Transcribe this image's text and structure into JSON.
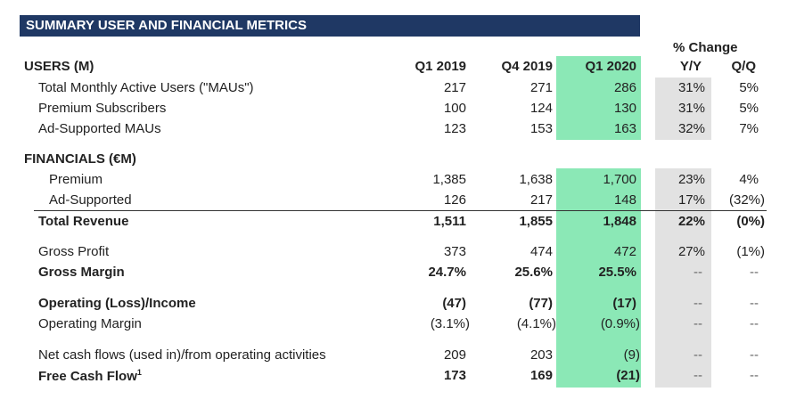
{
  "title": "SUMMARY USER AND FINANCIAL METRICS",
  "pct_change_label": "% Change",
  "columns": [
    "Q1 2019",
    "Q4 2019",
    "Q1 2020",
    "Y/Y",
    "Q/Q"
  ],
  "users_header": "USERS (M)",
  "financials_header": "FINANCIALS (€M)",
  "rows": [
    {
      "label": "Total Monthly Active Users (\"MAUs\")",
      "values": [
        "217",
        "271",
        "286",
        "31%",
        "5%"
      ]
    },
    {
      "label": "Premium Subscribers",
      "values": [
        "100",
        "124",
        "130",
        "31%",
        "5%"
      ]
    },
    {
      "label": "Ad-Supported MAUs",
      "values": [
        "123",
        "153",
        "163",
        "32%",
        "7%"
      ]
    },
    {
      "label": "Premium",
      "values": [
        "1,385",
        "1,638",
        "1,700",
        "23%",
        "4%"
      ]
    },
    {
      "label": "Ad-Supported",
      "values": [
        "126",
        "217",
        "148",
        "17%",
        "(32%)"
      ]
    },
    {
      "label": "Total Revenue",
      "values": [
        "1,511",
        "1,855",
        "1,848",
        "22%",
        "(0%)"
      ]
    },
    {
      "label": "Gross Profit",
      "values": [
        "373",
        "474",
        "472",
        "27%",
        "(1%)"
      ]
    },
    {
      "label": "Gross Margin",
      "values": [
        "24.7%",
        "25.6%",
        "25.5%",
        "--",
        "--"
      ]
    },
    {
      "label": "Operating (Loss)/Income",
      "values": [
        "(47)",
        "(77)",
        "(17)",
        "--",
        "--"
      ]
    },
    {
      "label": "Operating Margin",
      "values": [
        "(3.1%)",
        "(4.1%)",
        "(0.9%)",
        "--",
        "--"
      ]
    },
    {
      "label": "Net cash flows (used in)/from operating activities",
      "values": [
        "209",
        "203",
        "(9)",
        "--",
        "--"
      ]
    },
    {
      "label": "Free Cash Flow",
      "footnote": "1",
      "values": [
        "173",
        "169",
        "(21)",
        "--",
        "--"
      ]
    }
  ],
  "colors": {
    "banner": "#1f3864",
    "current_quarter_highlight": "#8be8b6",
    "yoy_highlight": "#e2e2e2"
  }
}
